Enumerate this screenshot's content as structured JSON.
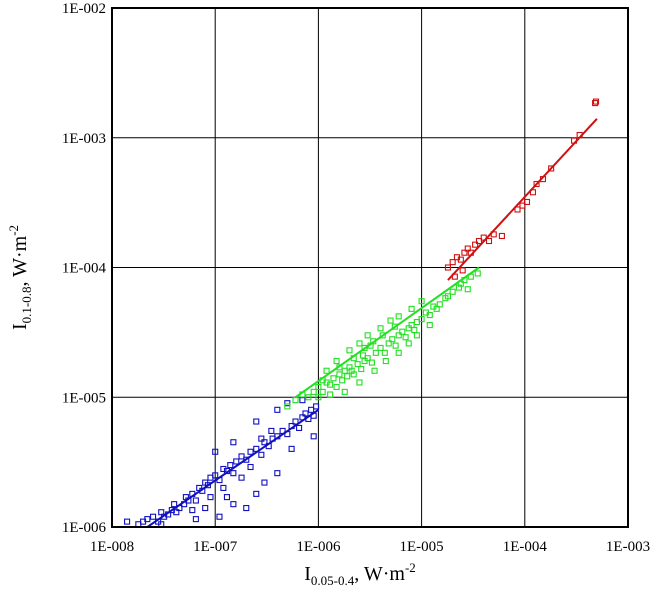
{
  "chart_data": {
    "type": "scatter",
    "x_scale": "log",
    "y_scale": "log",
    "xlim": [
      1e-08,
      0.001
    ],
    "ylim": [
      1e-06,
      0.01
    ],
    "grid": true,
    "x_ticks": [
      1e-08,
      1e-07,
      1e-06,
      1e-05,
      0.0001,
      0.001
    ],
    "x_tick_labels": [
      "1E-008",
      "1E-007",
      "1E-006",
      "1E-005",
      "1E-004",
      "1E-003"
    ],
    "y_ticks": [
      1e-06,
      1e-05,
      0.0001,
      0.001,
      0.01
    ],
    "y_tick_labels": [
      "1E-006",
      "1E-005",
      "1E-004",
      "1E-003",
      "1E-002"
    ],
    "xlabel": {
      "main": "I",
      "sub": "0.05-0.4",
      "rest": ", W·m",
      "sup": "-2"
    },
    "ylabel": {
      "main": "I",
      "sub": "0.1-0.8",
      "rest": ", W·m",
      "sup": "-2"
    },
    "series": [
      {
        "color": "#1010c0",
        "marker": "square-open",
        "points": [
          [
            1.4e-08,
            1.1e-06
          ],
          [
            1.8e-08,
            1.05e-06
          ],
          [
            2e-08,
            1.1e-06
          ],
          [
            2.2e-08,
            1.15e-06
          ],
          [
            2.5e-08,
            1.2e-06
          ],
          [
            2.8e-08,
            1.1e-06
          ],
          [
            3e-08,
            1.3e-06
          ],
          [
            3.2e-08,
            1.2e-06
          ],
          [
            3.5e-08,
            1.25e-06
          ],
          [
            3.8e-08,
            1.35e-06
          ],
          [
            4e-08,
            1.5e-06
          ],
          [
            4.2e-08,
            1.3e-06
          ],
          [
            4.5e-08,
            1.4e-06
          ],
          [
            5e-08,
            1.5e-06
          ],
          [
            5.2e-08,
            1.7e-06
          ],
          [
            5.5e-08,
            1.6e-06
          ],
          [
            6e-08,
            1.8e-06
          ],
          [
            6.5e-08,
            1.6e-06
          ],
          [
            7e-08,
            2e-06
          ],
          [
            7.5e-08,
            1.9e-06
          ],
          [
            8e-08,
            2.2e-06
          ],
          [
            8.5e-08,
            2.1e-06
          ],
          [
            9e-08,
            2.4e-06
          ],
          [
            1e-07,
            2.5e-06
          ],
          [
            1.1e-07,
            2.3e-06
          ],
          [
            1.2e-07,
            2.8e-06
          ],
          [
            1.3e-07,
            2.7e-06
          ],
          [
            1.4e-07,
            3e-06
          ],
          [
            1.5e-07,
            2.6e-06
          ],
          [
            1.6e-07,
            3.2e-06
          ],
          [
            1.8e-07,
            3.5e-06
          ],
          [
            2e-07,
            3.3e-06
          ],
          [
            2.2e-07,
            3.8e-06
          ],
          [
            2.5e-07,
            4e-06
          ],
          [
            2.8e-07,
            3.6e-06
          ],
          [
            3e-07,
            4.5e-06
          ],
          [
            3.3e-07,
            4.2e-06
          ],
          [
            3.6e-07,
            4.8e-06
          ],
          [
            4e-07,
            5e-06
          ],
          [
            4.5e-07,
            5.5e-06
          ],
          [
            5e-07,
            5.2e-06
          ],
          [
            5.5e-07,
            6e-06
          ],
          [
            6e-07,
            6.5e-06
          ],
          [
            6.5e-07,
            5.8e-06
          ],
          [
            7e-07,
            7e-06
          ],
          [
            7.5e-07,
            7.5e-06
          ],
          [
            8e-07,
            6.8e-06
          ],
          [
            8.5e-07,
            8e-06
          ],
          [
            9e-07,
            7.2e-06
          ],
          [
            9.5e-07,
            8.5e-06
          ],
          [
            3e-08,
            1.05e-06
          ],
          [
            6e-08,
            1.35e-06
          ],
          [
            9e-08,
            1.7e-06
          ],
          [
            1.2e-07,
            2e-06
          ],
          [
            1.5e-07,
            1.5e-06
          ],
          [
            2e-07,
            1.4e-06
          ],
          [
            2.5e-07,
            1.8e-06
          ],
          [
            3e-07,
            2.2e-06
          ],
          [
            4e-07,
            2.6e-06
          ],
          [
            1.1e-07,
            1.2e-06
          ],
          [
            1e-07,
            3.8e-06
          ],
          [
            1.5e-07,
            4.5e-06
          ],
          [
            2.5e-07,
            6.5e-06
          ],
          [
            4e-07,
            8e-06
          ],
          [
            5e-07,
            9e-06
          ],
          [
            7e-07,
            9.5e-06
          ],
          [
            9e-07,
            5e-06
          ],
          [
            8e-08,
            1.4e-06
          ],
          [
            6.5e-08,
            1.15e-06
          ],
          [
            1.3e-07,
            1.7e-06
          ],
          [
            3.5e-07,
            5.5e-06
          ],
          [
            2.8e-07,
            4.8e-06
          ],
          [
            1.8e-07,
            2.4e-06
          ],
          [
            2.2e-07,
            2.9e-06
          ],
          [
            5.5e-07,
            4e-06
          ]
        ]
      },
      {
        "color": "#20e020",
        "marker": "square-open",
        "points": [
          [
            5e-07,
            8.5e-06
          ],
          [
            6e-07,
            9.5e-06
          ],
          [
            7e-07,
            1.05e-05
          ],
          [
            8e-07,
            1e-05
          ],
          [
            9e-07,
            1.1e-05
          ],
          [
            1e-06,
            1.2e-05
          ],
          [
            1.1e-06,
            1.1e-05
          ],
          [
            1.2e-06,
            1.3e-05
          ],
          [
            1.3e-06,
            1.25e-05
          ],
          [
            1.4e-06,
            1.4e-05
          ],
          [
            1.5e-06,
            1.2e-05
          ],
          [
            1.6e-06,
            1.5e-05
          ],
          [
            1.7e-06,
            1.35e-05
          ],
          [
            1.8e-06,
            1.6e-05
          ],
          [
            1.9e-06,
            1.45e-05
          ],
          [
            2e-06,
            1.7e-05
          ],
          [
            2.2e-06,
            1.5e-05
          ],
          [
            2.4e-06,
            1.8e-05
          ],
          [
            2.6e-06,
            1.65e-05
          ],
          [
            2.8e-06,
            1.9e-05
          ],
          [
            3e-06,
            2e-05
          ],
          [
            3.3e-06,
            1.85e-05
          ],
          [
            3.6e-06,
            2.2e-05
          ],
          [
            4e-06,
            2.4e-05
          ],
          [
            4.4e-06,
            2.2e-05
          ],
          [
            4.8e-06,
            2.6e-05
          ],
          [
            5.2e-06,
            2.8e-05
          ],
          [
            5.6e-06,
            2.5e-05
          ],
          [
            6e-06,
            3e-05
          ],
          [
            6.5e-06,
            3.2e-05
          ],
          [
            7e-06,
            2.9e-05
          ],
          [
            7.5e-06,
            3.4e-05
          ],
          [
            8e-06,
            3.6e-05
          ],
          [
            8.5e-06,
            3.3e-05
          ],
          [
            9e-06,
            3.8e-05
          ],
          [
            1e-05,
            4e-05
          ],
          [
            1.1e-05,
            4.5e-05
          ],
          [
            1.2e-05,
            4.3e-05
          ],
          [
            1.3e-05,
            5e-05
          ],
          [
            1.5e-05,
            5.2e-05
          ],
          [
            1.7e-05,
            5.8e-05
          ],
          [
            2e-05,
            6.5e-05
          ],
          [
            2.3e-05,
            7e-05
          ],
          [
            2.6e-05,
            8e-05
          ],
          [
            3e-05,
            8.5e-05
          ],
          [
            1.2e-06,
            1.6e-05
          ],
          [
            1.5e-06,
            1.9e-05
          ],
          [
            2e-06,
            2.3e-05
          ],
          [
            2.5e-06,
            2.6e-05
          ],
          [
            3e-06,
            3e-05
          ],
          [
            4e-06,
            3.4e-05
          ],
          [
            5e-06,
            3.9e-05
          ],
          [
            6e-06,
            4.2e-05
          ],
          [
            8e-06,
            4.8e-05
          ],
          [
            1e-05,
            5.5e-05
          ],
          [
            1e-06,
            1e-05
          ],
          [
            1.3e-06,
            1.05e-05
          ],
          [
            1.8e-06,
            1.1e-05
          ],
          [
            2.5e-06,
            1.3e-05
          ],
          [
            3.5e-06,
            1.6e-05
          ],
          [
            4.5e-06,
            1.9e-05
          ],
          [
            6e-06,
            2.2e-05
          ],
          [
            7.5e-06,
            2.6e-05
          ],
          [
            9e-06,
            3e-05
          ],
          [
            1.2e-05,
            3.6e-05
          ],
          [
            2.2e-06,
            2e-05
          ],
          [
            2.8e-06,
            2.4e-05
          ],
          [
            3.4e-06,
            2.7e-05
          ],
          [
            4.2e-06,
            3e-05
          ],
          [
            5.5e-06,
            3.5e-05
          ],
          [
            1.1e-06,
            1.35e-05
          ],
          [
            1.6e-06,
            1.7e-05
          ],
          [
            2.1e-06,
            1.6e-05
          ],
          [
            2.7e-06,
            2.1e-05
          ],
          [
            3.2e-06,
            2.5e-05
          ],
          [
            1.4e-05,
            4.8e-05
          ],
          [
            1.8e-05,
            6e-05
          ],
          [
            2.4e-05,
            7.5e-05
          ],
          [
            2.8e-05,
            6.8e-05
          ],
          [
            3.5e-05,
            9e-05
          ]
        ]
      },
      {
        "color": "#d01010",
        "marker": "square-open",
        "points": [
          [
            1.8e-05,
            0.0001
          ],
          [
            2e-05,
            0.00011
          ],
          [
            2.2e-05,
            0.00012
          ],
          [
            2.4e-05,
            0.000115
          ],
          [
            2.6e-05,
            0.00013
          ],
          [
            2.8e-05,
            0.00014
          ],
          [
            3e-05,
            0.00013
          ],
          [
            3.3e-05,
            0.00015
          ],
          [
            3.6e-05,
            0.00016
          ],
          [
            4e-05,
            0.00017
          ],
          [
            4.5e-05,
            0.00016
          ],
          [
            5e-05,
            0.00018
          ],
          [
            6e-05,
            0.000175
          ],
          [
            2.1e-05,
            8.5e-05
          ],
          [
            2.5e-05,
            9.5e-05
          ],
          [
            8.5e-05,
            0.00028
          ],
          [
            9.5e-05,
            0.0003
          ],
          [
            0.000105,
            0.00032
          ],
          [
            0.00012,
            0.00038
          ],
          [
            0.00013,
            0.00044
          ],
          [
            0.00015,
            0.00048
          ],
          [
            0.00018,
            0.00058
          ],
          [
            0.0003,
            0.00095
          ],
          [
            0.00034,
            0.00105
          ],
          [
            0.00048,
            0.00185
          ],
          [
            0.00049,
            0.0019
          ]
        ]
      }
    ],
    "fit_lines": [
      {
        "color": "#1010c0",
        "from": [
          2.2e-08,
          1e-06
        ],
        "to": [
          1e-06,
          8e-06
        ]
      },
      {
        "color": "#20e020",
        "from": [
          6e-07,
          1e-05
        ],
        "to": [
          3.6e-05,
          0.0001
        ]
      },
      {
        "color": "#d01010",
        "from": [
          1.8e-05,
          8e-05
        ],
        "to": [
          0.0005,
          0.0014
        ]
      }
    ]
  }
}
